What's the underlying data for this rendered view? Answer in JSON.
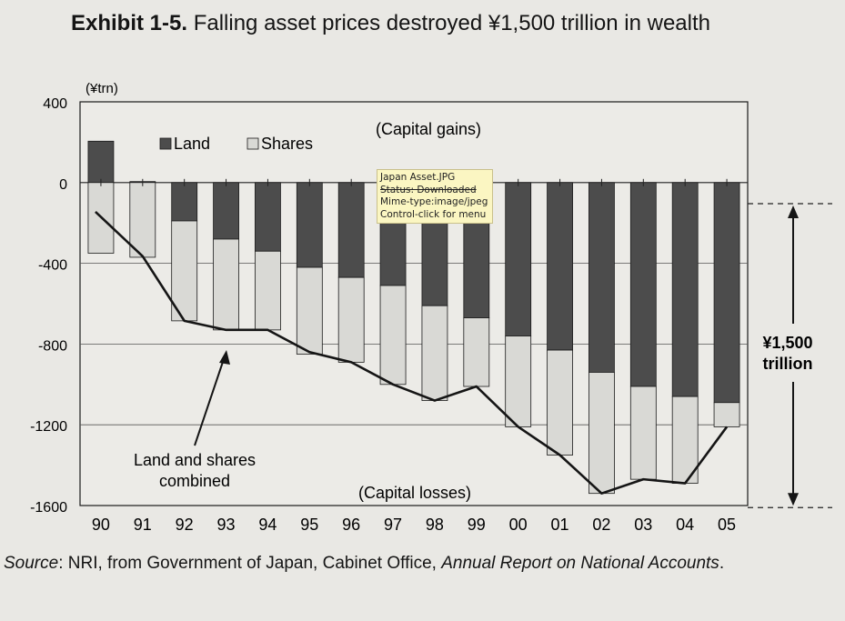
{
  "figure": {
    "exhibit_label": "Exhibit 1-5.",
    "title": "Falling asset prices destroyed ¥1,500 trillion in wealth",
    "source_prefix": "Source",
    "source_mid": ": NRI, from Government of Japan, Cabinet Office, ",
    "source_italic": "Annual Report on National Accounts",
    "source_end": "."
  },
  "tooltip": {
    "line1": "Japan Asset.JPG",
    "line2": "Status: Downloaded",
    "line3": "Mime-type:image/jpeg",
    "line4": "Control-click for menu"
  },
  "chart_data": {
    "type": "bar",
    "stacked": true,
    "ylabel": "(¥trn)",
    "ylim": [
      -1600,
      400
    ],
    "yticks": [
      "400",
      "0",
      "-400",
      "-800",
      "-1200",
      "-1600"
    ],
    "ytick_values": [
      400,
      0,
      -400,
      -800,
      -1200,
      -1600
    ],
    "grid": true,
    "legend_position": "top-left",
    "categories": [
      "90",
      "91",
      "92",
      "93",
      "94",
      "95",
      "96",
      "97",
      "98",
      "99",
      "00",
      "01",
      "02",
      "03",
      "04",
      "05"
    ],
    "series": [
      {
        "name": "Land",
        "color": "#4c4c4c",
        "values": [
          205,
          5,
          -190,
          -280,
          -340,
          -420,
          -470,
          -510,
          -610,
          -670,
          -760,
          -830,
          -940,
          -1010,
          -1060,
          -1090
        ]
      },
      {
        "name": "Shares",
        "color": "#d9d9d5",
        "values": [
          -350,
          -370,
          -495,
          -450,
          -390,
          -430,
          -420,
          -490,
          -470,
          -340,
          -450,
          -520,
          -600,
          -460,
          -430,
          -120
        ]
      }
    ],
    "combined_line": {
      "name": "Land and shares combined",
      "values": [
        -145,
        -365,
        -685,
        -730,
        -730,
        -840,
        -890,
        -1000,
        -1080,
        -1010,
        -1210,
        -1350,
        -1540,
        -1470,
        -1490,
        -1210
      ]
    },
    "annotations": {
      "gains": "(Capital gains)",
      "losses": "(Capital losses)",
      "combined_line1": "Land and shares",
      "combined_line2": "combined",
      "total_line1": "¥1,500",
      "total_line2": "trillion"
    }
  }
}
